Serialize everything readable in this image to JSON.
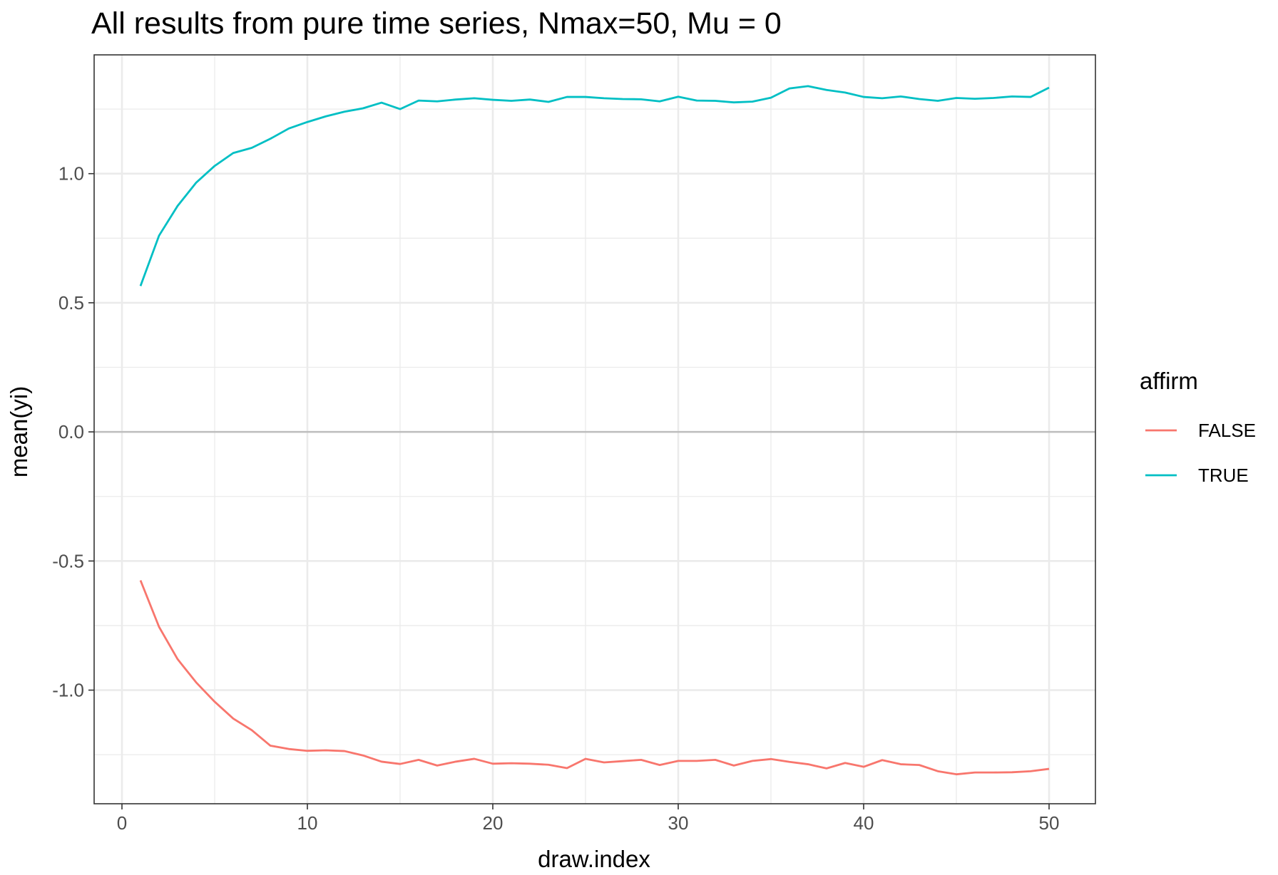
{
  "chart_data": {
    "type": "line",
    "title": "All results from pure time series, Nmax=50, Mu = 0",
    "xlabel": "draw.index",
    "ylabel": "mean(yi)",
    "xlim": [
      -1.5,
      52.5
    ],
    "ylim": [
      -1.44,
      1.46
    ],
    "x_ticks": [
      0,
      10,
      20,
      30,
      40,
      50
    ],
    "x_tick_labels": [
      "0",
      "10",
      "20",
      "30",
      "40",
      "50"
    ],
    "y_ticks": [
      -1.0,
      -0.5,
      0.0,
      0.5,
      1.0
    ],
    "y_tick_labels": [
      "-1.0",
      "-0.5",
      "0.0",
      "0.5",
      "1.0"
    ],
    "grid": true,
    "reference_line_y": 0,
    "legend": {
      "title": "affirm",
      "placement": "right"
    },
    "x": [
      1,
      2,
      3,
      4,
      5,
      6,
      7,
      8,
      9,
      10,
      11,
      12,
      13,
      14,
      15,
      16,
      17,
      18,
      19,
      20,
      21,
      22,
      23,
      24,
      25,
      26,
      27,
      28,
      29,
      30,
      31,
      32,
      33,
      34,
      35,
      36,
      37,
      38,
      39,
      40,
      41,
      42,
      43,
      44,
      45,
      46,
      47,
      48,
      49,
      50
    ],
    "series": [
      {
        "name": "FALSE",
        "color": "#f8766d",
        "values": [
          -0.575,
          -0.755,
          -0.88,
          -0.97,
          -1.045,
          -1.11,
          -1.155,
          -1.215,
          -1.228,
          -1.235,
          -1.233,
          -1.236,
          -1.253,
          -1.277,
          -1.286,
          -1.27,
          -1.292,
          -1.277,
          -1.266,
          -1.285,
          -1.283,
          -1.285,
          -1.289,
          -1.302,
          -1.266,
          -1.28,
          -1.275,
          -1.27,
          -1.29,
          -1.274,
          -1.274,
          -1.27,
          -1.292,
          -1.274,
          -1.267,
          -1.278,
          -1.287,
          -1.303,
          -1.282,
          -1.297,
          -1.271,
          -1.287,
          -1.29,
          -1.314,
          -1.326,
          -1.319,
          -1.319,
          -1.318,
          -1.314,
          -1.305
        ]
      },
      {
        "name": "TRUE",
        "color": "#00bfc4",
        "values": [
          0.565,
          0.76,
          0.875,
          0.965,
          1.03,
          1.08,
          1.1,
          1.135,
          1.175,
          1.2,
          1.222,
          1.24,
          1.253,
          1.275,
          1.25,
          1.283,
          1.28,
          1.287,
          1.292,
          1.286,
          1.282,
          1.287,
          1.278,
          1.297,
          1.297,
          1.292,
          1.289,
          1.288,
          1.28,
          1.298,
          1.283,
          1.282,
          1.276,
          1.279,
          1.294,
          1.33,
          1.339,
          1.324,
          1.314,
          1.297,
          1.292,
          1.299,
          1.289,
          1.282,
          1.293,
          1.29,
          1.293,
          1.299,
          1.297,
          1.333
        ]
      }
    ]
  }
}
